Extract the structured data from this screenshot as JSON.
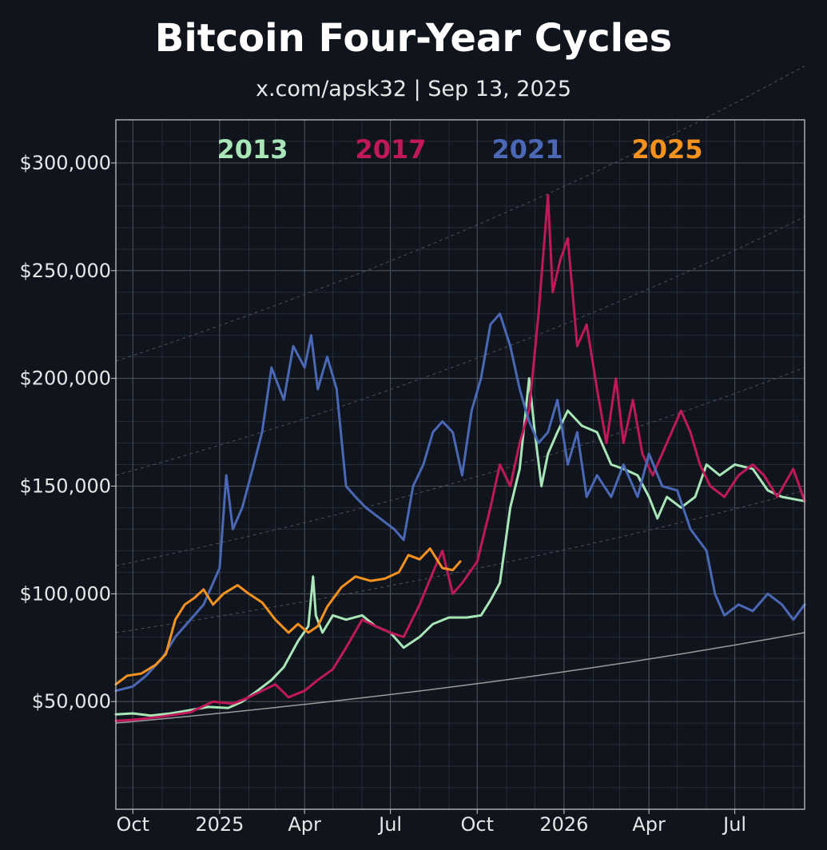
{
  "title": "Bitcoin Four-Year Cycles",
  "subtitle": "x.com/apsk32 | Sep 13, 2025",
  "chart_data": {
    "type": "line",
    "title": "Bitcoin Four-Year Cycles",
    "subtitle": "x.com/apsk32 | Sep 13, 2025",
    "xlabel": "",
    "ylabel": "",
    "xlim": [
      "2024-09-13",
      "2026-09-13"
    ],
    "ylim": [
      0,
      320000
    ],
    "x_ticks": [
      {
        "date": "2024-10-01",
        "label": "Oct"
      },
      {
        "date": "2025-01-01",
        "label": "2025"
      },
      {
        "date": "2025-04-01",
        "label": "Apr"
      },
      {
        "date": "2025-07-01",
        "label": "Jul"
      },
      {
        "date": "2025-10-01",
        "label": "Oct"
      },
      {
        "date": "2026-01-01",
        "label": "2026"
      },
      {
        "date": "2026-04-01",
        "label": "Apr"
      },
      {
        "date": "2026-07-01",
        "label": "Jul"
      }
    ],
    "y_ticks": [
      {
        "value": 50000,
        "label": "$50,000"
      },
      {
        "value": 100000,
        "label": "$100,000"
      },
      {
        "value": 150000,
        "label": "$150,000"
      },
      {
        "value": 200000,
        "label": "$200,000"
      },
      {
        "value": 250000,
        "label": "$250,000"
      },
      {
        "value": 300000,
        "label": "$300,000"
      }
    ],
    "grid": true,
    "legend_position": "top",
    "series": [
      {
        "name": "2013",
        "color": "#a8e6b8",
        "points": [
          [
            "2024-09-13",
            44000
          ],
          [
            "2024-10-01",
            44500
          ],
          [
            "2024-10-20",
            43500
          ],
          [
            "2024-11-10",
            44500
          ],
          [
            "2024-12-01",
            46000
          ],
          [
            "2024-12-20",
            47500
          ],
          [
            "2025-01-10",
            47000
          ],
          [
            "2025-01-25",
            50000
          ],
          [
            "2025-02-10",
            55000
          ],
          [
            "2025-02-25",
            60000
          ],
          [
            "2025-03-10",
            66000
          ],
          [
            "2025-03-25",
            78000
          ],
          [
            "2025-04-05",
            85000
          ],
          [
            "2025-04-10",
            108000
          ],
          [
            "2025-04-13",
            90000
          ],
          [
            "2025-04-20",
            82000
          ],
          [
            "2025-05-01",
            90000
          ],
          [
            "2025-05-15",
            88000
          ],
          [
            "2025-06-01",
            90000
          ],
          [
            "2025-06-15",
            85000
          ],
          [
            "2025-07-01",
            82000
          ],
          [
            "2025-07-15",
            75000
          ],
          [
            "2025-08-01",
            80000
          ],
          [
            "2025-08-15",
            86000
          ],
          [
            "2025-09-01",
            89000
          ],
          [
            "2025-09-20",
            89000
          ],
          [
            "2025-10-05",
            90000
          ],
          [
            "2025-10-15",
            97000
          ],
          [
            "2025-10-25",
            105000
          ],
          [
            "2025-11-05",
            140000
          ],
          [
            "2025-11-15",
            158000
          ],
          [
            "2025-11-25",
            200000
          ],
          [
            "2025-12-01",
            175000
          ],
          [
            "2025-12-08",
            150000
          ],
          [
            "2025-12-15",
            165000
          ],
          [
            "2025-12-25",
            175000
          ],
          [
            "2026-01-05",
            185000
          ],
          [
            "2026-01-20",
            178000
          ],
          [
            "2026-02-05",
            175000
          ],
          [
            "2026-02-20",
            160000
          ],
          [
            "2026-03-05",
            158000
          ],
          [
            "2026-03-20",
            155000
          ],
          [
            "2026-04-01",
            145000
          ],
          [
            "2026-04-10",
            135000
          ],
          [
            "2026-04-20",
            145000
          ],
          [
            "2026-05-05",
            140000
          ],
          [
            "2026-05-20",
            145000
          ],
          [
            "2026-06-01",
            160000
          ],
          [
            "2026-06-15",
            155000
          ],
          [
            "2026-07-01",
            160000
          ],
          [
            "2026-07-20",
            158000
          ],
          [
            "2026-08-05",
            148000
          ],
          [
            "2026-08-20",
            145000
          ],
          [
            "2026-09-13",
            143000
          ]
        ]
      },
      {
        "name": "2017",
        "color": "#c0185a",
        "points": [
          [
            "2024-09-13",
            41000
          ],
          [
            "2024-10-01",
            41500
          ],
          [
            "2024-11-01",
            43000
          ],
          [
            "2024-12-01",
            45000
          ],
          [
            "2024-12-25",
            50000
          ],
          [
            "2025-01-15",
            49000
          ],
          [
            "2025-02-01",
            52000
          ],
          [
            "2025-02-15",
            55000
          ],
          [
            "2025-03-01",
            58000
          ],
          [
            "2025-03-15",
            52000
          ],
          [
            "2025-04-01",
            55000
          ],
          [
            "2025-04-15",
            60000
          ],
          [
            "2025-05-01",
            65000
          ],
          [
            "2025-05-15",
            75000
          ],
          [
            "2025-06-01",
            88000
          ],
          [
            "2025-06-15",
            85000
          ],
          [
            "2025-07-01",
            82000
          ],
          [
            "2025-07-15",
            80000
          ],
          [
            "2025-08-01",
            95000
          ],
          [
            "2025-08-15",
            110000
          ],
          [
            "2025-08-25",
            120000
          ],
          [
            "2025-09-05",
            100000
          ],
          [
            "2025-09-15",
            105000
          ],
          [
            "2025-10-01",
            115000
          ],
          [
            "2025-10-15",
            140000
          ],
          [
            "2025-10-25",
            160000
          ],
          [
            "2025-11-05",
            150000
          ],
          [
            "2025-11-15",
            170000
          ],
          [
            "2025-11-25",
            185000
          ],
          [
            "2025-12-05",
            230000
          ],
          [
            "2025-12-15",
            285000
          ],
          [
            "2025-12-20",
            240000
          ],
          [
            "2025-12-28",
            255000
          ],
          [
            "2026-01-05",
            265000
          ],
          [
            "2026-01-15",
            215000
          ],
          [
            "2026-01-25",
            225000
          ],
          [
            "2026-02-05",
            195000
          ],
          [
            "2026-02-15",
            170000
          ],
          [
            "2026-02-25",
            200000
          ],
          [
            "2026-03-05",
            170000
          ],
          [
            "2026-03-15",
            190000
          ],
          [
            "2026-03-25",
            165000
          ],
          [
            "2026-04-05",
            155000
          ],
          [
            "2026-04-15",
            165000
          ],
          [
            "2026-04-25",
            175000
          ],
          [
            "2026-05-05",
            185000
          ],
          [
            "2026-05-15",
            175000
          ],
          [
            "2026-05-25",
            160000
          ],
          [
            "2026-06-05",
            150000
          ],
          [
            "2026-06-20",
            145000
          ],
          [
            "2026-07-05",
            155000
          ],
          [
            "2026-07-20",
            160000
          ],
          [
            "2026-08-01",
            155000
          ],
          [
            "2026-08-15",
            145000
          ],
          [
            "2026-09-01",
            158000
          ],
          [
            "2026-09-13",
            143000
          ]
        ]
      },
      {
        "name": "2021",
        "color": "#4a68b5",
        "points": [
          [
            "2024-09-13",
            55000
          ],
          [
            "2024-10-01",
            57000
          ],
          [
            "2024-10-15",
            62000
          ],
          [
            "2024-11-01",
            70000
          ],
          [
            "2024-11-15",
            80000
          ],
          [
            "2024-12-01",
            88000
          ],
          [
            "2024-12-15",
            95000
          ],
          [
            "2025-01-01",
            112000
          ],
          [
            "2025-01-08",
            155000
          ],
          [
            "2025-01-15",
            130000
          ],
          [
            "2025-01-25",
            140000
          ],
          [
            "2025-02-05",
            158000
          ],
          [
            "2025-02-15",
            175000
          ],
          [
            "2025-02-25",
            205000
          ],
          [
            "2025-03-10",
            190000
          ],
          [
            "2025-03-20",
            215000
          ],
          [
            "2025-04-01",
            205000
          ],
          [
            "2025-04-08",
            220000
          ],
          [
            "2025-04-15",
            195000
          ],
          [
            "2025-04-25",
            210000
          ],
          [
            "2025-05-05",
            195000
          ],
          [
            "2025-05-15",
            150000
          ],
          [
            "2025-05-25",
            145000
          ],
          [
            "2025-06-05",
            140000
          ],
          [
            "2025-06-20",
            135000
          ],
          [
            "2025-07-05",
            130000
          ],
          [
            "2025-07-15",
            125000
          ],
          [
            "2025-07-25",
            150000
          ],
          [
            "2025-08-05",
            160000
          ],
          [
            "2025-08-15",
            175000
          ],
          [
            "2025-08-25",
            180000
          ],
          [
            "2025-09-05",
            175000
          ],
          [
            "2025-09-15",
            155000
          ],
          [
            "2025-09-25",
            185000
          ],
          [
            "2025-10-05",
            200000
          ],
          [
            "2025-10-15",
            225000
          ],
          [
            "2025-10-25",
            230000
          ],
          [
            "2025-11-05",
            215000
          ],
          [
            "2025-11-15",
            195000
          ],
          [
            "2025-11-25",
            180000
          ],
          [
            "2025-12-05",
            170000
          ],
          [
            "2025-12-15",
            175000
          ],
          [
            "2025-12-25",
            190000
          ],
          [
            "2026-01-05",
            160000
          ],
          [
            "2026-01-15",
            175000
          ],
          [
            "2026-01-25",
            145000
          ],
          [
            "2026-02-05",
            155000
          ],
          [
            "2026-02-20",
            145000
          ],
          [
            "2026-03-05",
            160000
          ],
          [
            "2026-03-20",
            145000
          ],
          [
            "2026-04-01",
            165000
          ],
          [
            "2026-04-15",
            150000
          ],
          [
            "2026-05-01",
            148000
          ],
          [
            "2026-05-15",
            130000
          ],
          [
            "2026-06-01",
            120000
          ],
          [
            "2026-06-10",
            100000
          ],
          [
            "2026-06-20",
            90000
          ],
          [
            "2026-07-05",
            95000
          ],
          [
            "2026-07-20",
            92000
          ],
          [
            "2026-08-05",
            100000
          ],
          [
            "2026-08-20",
            95000
          ],
          [
            "2026-09-01",
            88000
          ],
          [
            "2026-09-13",
            95000
          ]
        ]
      },
      {
        "name": "2025",
        "color": "#f5921e",
        "points": [
          [
            "2024-09-13",
            58000
          ],
          [
            "2024-09-25",
            62000
          ],
          [
            "2024-10-10",
            63000
          ],
          [
            "2024-10-25",
            67000
          ],
          [
            "2024-11-05",
            72000
          ],
          [
            "2024-11-15",
            88000
          ],
          [
            "2024-11-25",
            95000
          ],
          [
            "2024-12-05",
            98000
          ],
          [
            "2024-12-15",
            102000
          ],
          [
            "2024-12-25",
            95000
          ],
          [
            "2025-01-05",
            100000
          ],
          [
            "2025-01-20",
            104000
          ],
          [
            "2025-02-01",
            100000
          ],
          [
            "2025-02-15",
            96000
          ],
          [
            "2025-03-01",
            88000
          ],
          [
            "2025-03-15",
            82000
          ],
          [
            "2025-03-25",
            86000
          ],
          [
            "2025-04-05",
            82000
          ],
          [
            "2025-04-15",
            85000
          ],
          [
            "2025-04-25",
            94000
          ],
          [
            "2025-05-10",
            103000
          ],
          [
            "2025-05-25",
            108000
          ],
          [
            "2025-06-10",
            106000
          ],
          [
            "2025-06-25",
            107000
          ],
          [
            "2025-07-10",
            110000
          ],
          [
            "2025-07-20",
            118000
          ],
          [
            "2025-08-01",
            116000
          ],
          [
            "2025-08-12",
            121000
          ],
          [
            "2025-08-25",
            112000
          ],
          [
            "2025-09-05",
            111000
          ],
          [
            "2025-09-13",
            115000
          ]
        ]
      }
    ]
  }
}
